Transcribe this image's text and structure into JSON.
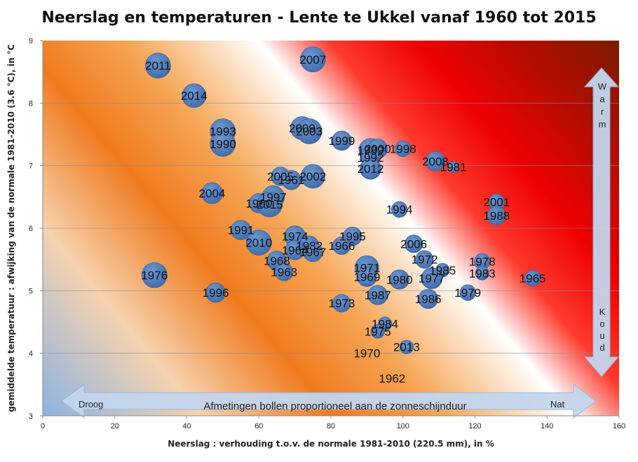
{
  "chart_data": {
    "type": "scatter",
    "title": "Neerslag en temperaturen - Lente te Ukkel vanaf 1960 tot 2015",
    "xlabel": "Neerslag : verhouding t.o.v. de normale 1981-2010 (220.5 mm), in %",
    "ylabel": "gemiddelde temperatuur : afwijking van de normale 1981-2010 (3.6 °C), in °C",
    "xlim": [
      0,
      160
    ],
    "ylim": [
      3,
      9
    ],
    "x_ticks": [
      "0",
      "20",
      "40",
      "60",
      "80",
      "100",
      "120",
      "140",
      "160"
    ],
    "y_ticks": [
      "3",
      "4",
      "5",
      "6",
      "7",
      "8",
      "9"
    ],
    "grid": "horizontal",
    "bubble_note": "Afmetingen bollen proportioneel aan de zonneschijnduur",
    "x_arrow": {
      "left": "Droog",
      "right": "Nat"
    },
    "y_arrow": {
      "top": "Warm",
      "bottom": "Koud"
    },
    "colors": {
      "bubble": "#4f7fbf",
      "highlight_label": "#ffff33"
    },
    "points": [
      {
        "year": "2011",
        "x": 32,
        "y": 8.6,
        "size": 1.0
      },
      {
        "year": "2007",
        "x": 75,
        "y": 8.7,
        "size": 1.0
      },
      {
        "year": "2014",
        "x": 42,
        "y": 8.12,
        "size": 0.9
      },
      {
        "year": "1993",
        "x": 50,
        "y": 7.55,
        "size": 1.0
      },
      {
        "year": "1990",
        "x": 50,
        "y": 7.35,
        "size": 1.0
      },
      {
        "year": "2009",
        "x": 72,
        "y": 7.6,
        "size": 0.85
      },
      {
        "year": "2003",
        "x": 74,
        "y": 7.55,
        "size": 1.0
      },
      {
        "year": "1999",
        "x": 83,
        "y": 7.4,
        "size": 0.6
      },
      {
        "year": "1989",
        "x": 91,
        "y": 7.25,
        "size": 0.85
      },
      {
        "year": "2000",
        "x": 93,
        "y": 7.27,
        "size": 0.6
      },
      {
        "year": "1992",
        "x": 91,
        "y": 7.13,
        "size": 0.6
      },
      {
        "year": "1998",
        "x": 100,
        "y": 7.27,
        "size": 0.4
      },
      {
        "year": "2012",
        "x": 91,
        "y": 6.95,
        "size": 0.7
      },
      {
        "year": "2008",
        "x": 109,
        "y": 7.07,
        "size": 0.6
      },
      {
        "year": "1981",
        "x": 114,
        "y": 6.98,
        "size": 0.2
      },
      {
        "year": "2005",
        "x": 66,
        "y": 6.83,
        "size": 0.55
      },
      {
        "year": "1961",
        "x": 69,
        "y": 6.77,
        "size": 0.6
      },
      {
        "year": "2002",
        "x": 75,
        "y": 6.83,
        "size": 0.9
      },
      {
        "year": "2004",
        "x": 47,
        "y": 6.56,
        "size": 0.7
      },
      {
        "year": "1997",
        "x": 64,
        "y": 6.5,
        "size": 0.8
      },
      {
        "year": "1960",
        "x": 60,
        "y": 6.4,
        "size": 0.6
      },
      {
        "year": "2015",
        "x": 63,
        "y": 6.38,
        "size": 1.0,
        "highlight": true
      },
      {
        "year": "1994",
        "x": 99,
        "y": 6.3,
        "size": 0.4
      },
      {
        "year": "2001",
        "x": 126,
        "y": 6.42,
        "size": 0.4
      },
      {
        "year": "1988",
        "x": 126,
        "y": 6.2,
        "size": 0.55
      },
      {
        "year": "1991",
        "x": 55,
        "y": 5.97,
        "size": 0.6
      },
      {
        "year": "1974",
        "x": 70,
        "y": 5.87,
        "size": 0.7
      },
      {
        "year": "2010",
        "x": 60,
        "y": 5.77,
        "size": 1.0
      },
      {
        "year": "1995",
        "x": 86,
        "y": 5.87,
        "size": 0.55
      },
      {
        "year": "1966",
        "x": 83,
        "y": 5.72,
        "size": 0.5
      },
      {
        "year": "1982",
        "x": 74,
        "y": 5.72,
        "size": 0.6
      },
      {
        "year": "1964",
        "x": 70,
        "y": 5.65,
        "size": 0.6
      },
      {
        "year": "1967",
        "x": 75,
        "y": 5.62,
        "size": 0.6
      },
      {
        "year": "2006",
        "x": 103,
        "y": 5.75,
        "size": 0.5
      },
      {
        "year": "1968",
        "x": 65,
        "y": 5.48,
        "size": 0.6
      },
      {
        "year": "1972",
        "x": 106,
        "y": 5.5,
        "size": 0.5
      },
      {
        "year": "1978",
        "x": 122,
        "y": 5.47,
        "size": 0.4
      },
      {
        "year": "1963",
        "x": 67,
        "y": 5.3,
        "size": 0.5
      },
      {
        "year": "1971",
        "x": 90,
        "y": 5.37,
        "size": 0.9
      },
      {
        "year": "1985",
        "x": 111,
        "y": 5.33,
        "size": 0.3
      },
      {
        "year": "1983",
        "x": 122,
        "y": 5.28,
        "size": 0.3
      },
      {
        "year": "1976",
        "x": 31,
        "y": 5.25,
        "size": 1.0
      },
      {
        "year": "1969",
        "x": 90,
        "y": 5.22,
        "size": 0.6
      },
      {
        "year": "1980",
        "x": 99,
        "y": 5.18,
        "size": 0.6
      },
      {
        "year": "1977",
        "x": 108,
        "y": 5.2,
        "size": 0.7
      },
      {
        "year": "1965",
        "x": 136,
        "y": 5.2,
        "size": 0.4
      },
      {
        "year": "1996",
        "x": 48,
        "y": 4.97,
        "size": 0.6
      },
      {
        "year": "1987",
        "x": 93,
        "y": 4.93,
        "size": 0.6
      },
      {
        "year": "1979",
        "x": 118,
        "y": 4.97,
        "size": 0.4
      },
      {
        "year": "1986",
        "x": 107,
        "y": 4.87,
        "size": 0.6
      },
      {
        "year": "1973",
        "x": 83,
        "y": 4.8,
        "size": 0.5
      },
      {
        "year": "1984",
        "x": 95,
        "y": 4.47,
        "size": 0.3
      },
      {
        "year": "1975",
        "x": 93,
        "y": 4.35,
        "size": 0.3
      },
      {
        "year": "2013",
        "x": 101,
        "y": 4.1,
        "size": 0.3
      },
      {
        "year": "1970",
        "x": 90,
        "y": 4.0,
        "size": 0
      },
      {
        "year": "1962",
        "x": 97,
        "y": 3.6,
        "size": 0
      }
    ]
  }
}
